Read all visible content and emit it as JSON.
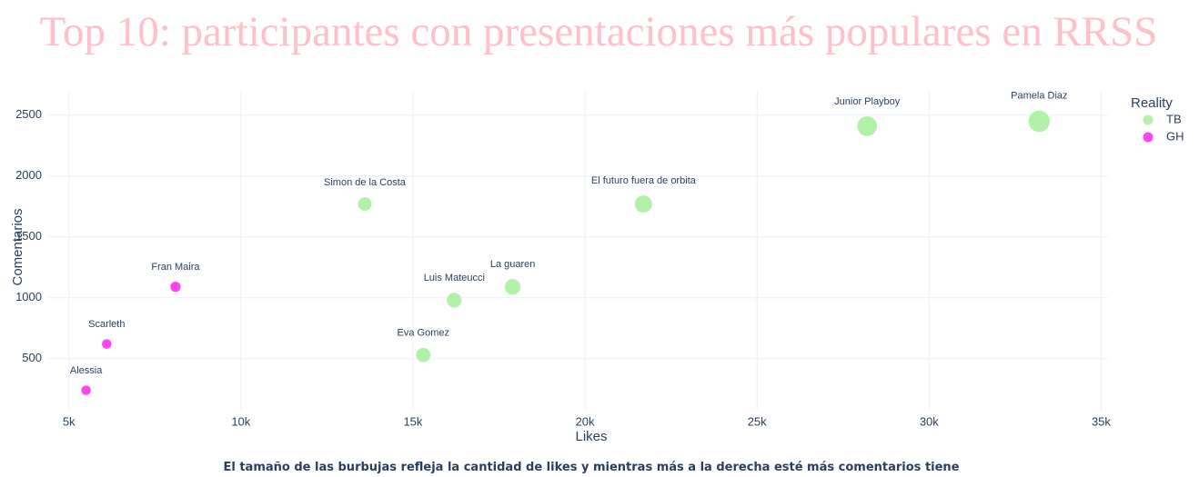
{
  "chart_data": {
    "type": "scatter",
    "title": "Top 10: participantes con presentaciones más populares en RRSS",
    "xlabel": "Likes",
    "ylabel": "Comentarios",
    "caption": "El tamaño de las burbujas refleja la cantidad de likes y mientras más a la derecha esté más comentarios tiene",
    "xlim": [
      4400,
      35200
    ],
    "ylim": [
      80,
      2700
    ],
    "xticks": [
      5000,
      10000,
      15000,
      20000,
      25000,
      30000,
      35000
    ],
    "xtick_labels": [
      "5k",
      "10k",
      "15k",
      "20k",
      "25k",
      "30k",
      "35k"
    ],
    "yticks": [
      500,
      1000,
      1500,
      2000,
      2500
    ],
    "ytick_labels": [
      "500",
      "1000",
      "1500",
      "2000",
      "2500"
    ],
    "grid": true,
    "legend_title": "Reality",
    "legend_position": "right",
    "colors": {
      "title": "#ffc0cb",
      "TB": "#b2f2a8",
      "GH": "#ff44f2",
      "grid": "#ebf0f8",
      "text": "#2a3f5f"
    },
    "series": [
      {
        "name": "TB",
        "points": [
          {
            "label": "Pamela Diaz",
            "x": 33200,
            "y": 2450
          },
          {
            "label": "Junior Playboy",
            "x": 28200,
            "y": 2410
          },
          {
            "label": "El futuro fuera de orbita",
            "x": 21700,
            "y": 1770
          },
          {
            "label": "Simon de la Costa",
            "x": 13600,
            "y": 1770
          },
          {
            "label": "La guaren",
            "x": 17900,
            "y": 1090
          },
          {
            "label": "Luis Mateucci",
            "x": 16200,
            "y": 980
          },
          {
            "label": "Eva Gomez",
            "x": 15300,
            "y": 530
          }
        ]
      },
      {
        "name": "GH",
        "points": [
          {
            "label": "Fran Maira",
            "x": 8100,
            "y": 1090
          },
          {
            "label": "Scarleth",
            "x": 6100,
            "y": 620
          },
          {
            "label": "Alessia",
            "x": 5500,
            "y": 240
          }
        ]
      }
    ]
  }
}
